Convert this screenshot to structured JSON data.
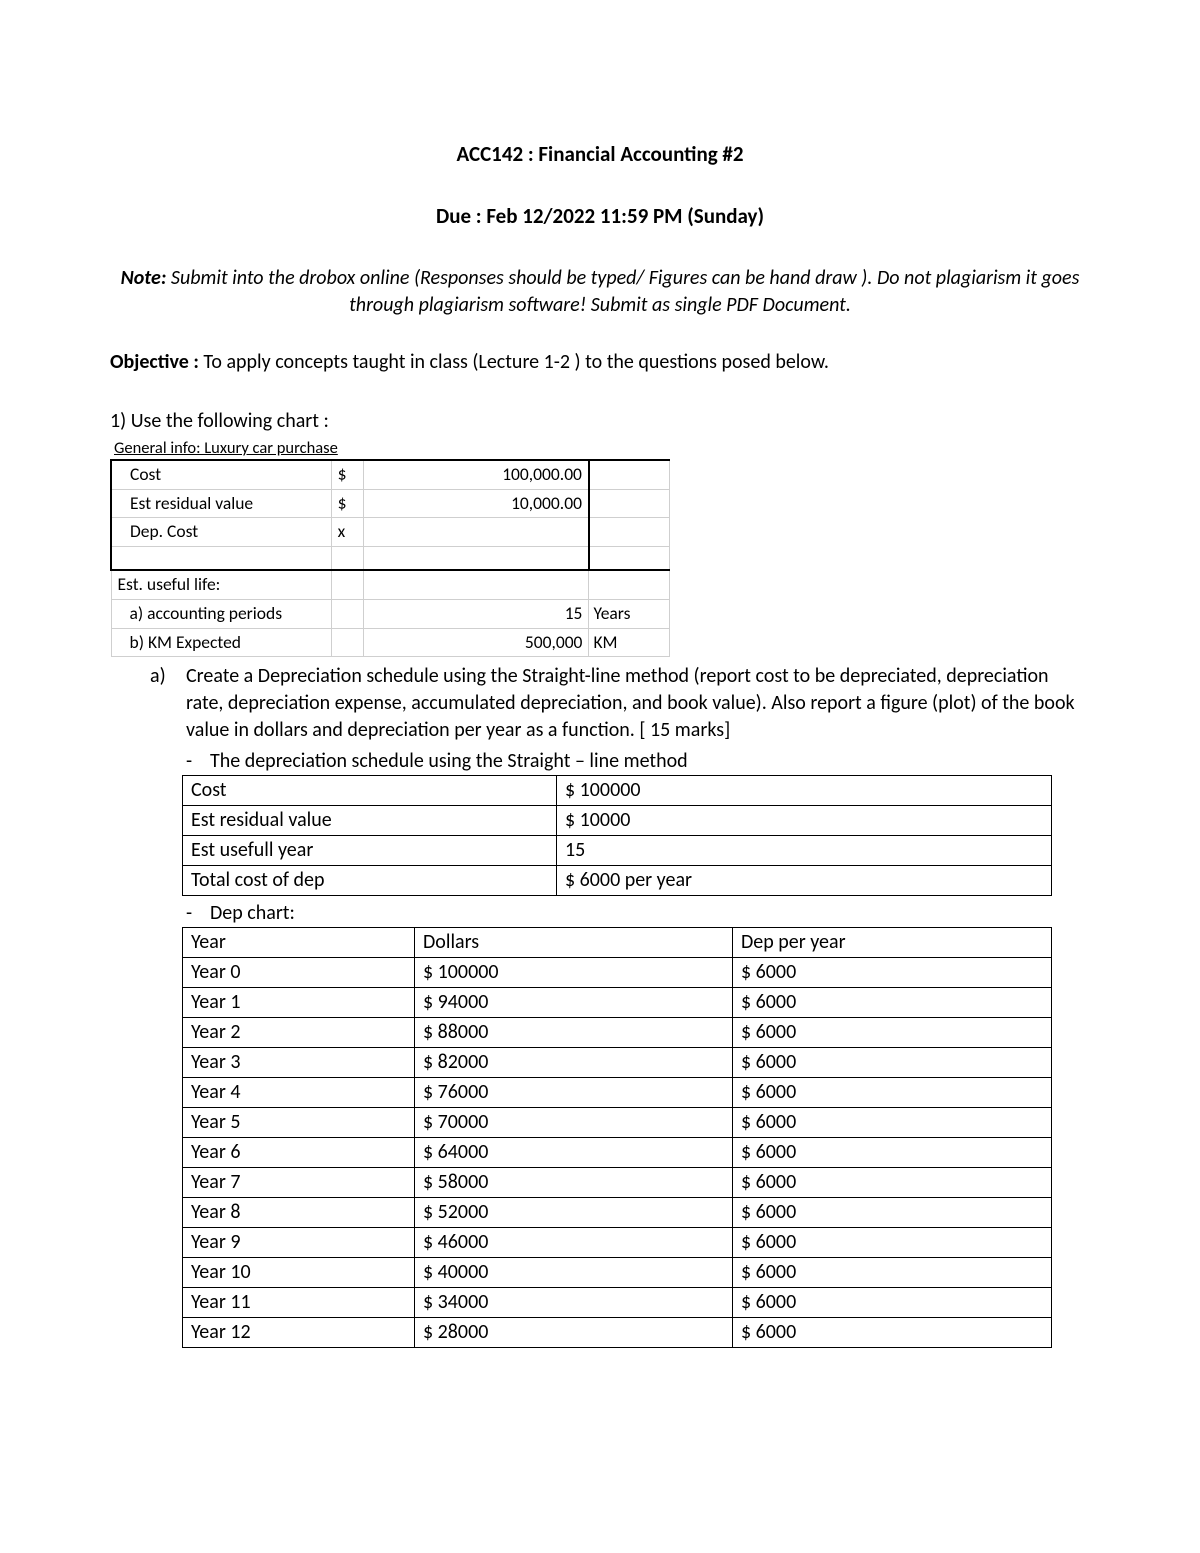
{
  "header": {
    "title": "ACC142 : Financial Accounting #2",
    "due": "Due : Feb 12/2022 11:59 PM (Sunday)"
  },
  "note": {
    "label": "Note:",
    "text": " Submit into the drobox online (Responses should be typed/ Figures can be hand draw ). Do not plagiarism it goes through plagiarism software! Submit as single PDF Document."
  },
  "objective": {
    "label": "Objective :",
    "text": " To apply concepts taught in class (Lecture 1-2 ) to the questions posed below."
  },
  "q1": {
    "prompt": "1) Use the following chart :",
    "general_info": {
      "caption": "General info:  Luxury car purchase",
      "rows": [
        {
          "label": "Cost",
          "sym": "$",
          "value": "100,000.00",
          "unit": ""
        },
        {
          "label": "Est residual value",
          "sym": "$",
          "value": "10,000.00",
          "unit": ""
        },
        {
          "label": "Dep. Cost",
          "sym": "x",
          "value": "",
          "unit": ""
        }
      ],
      "section_label": "Est. useful life:",
      "life_rows": [
        {
          "label": "a) accounting periods",
          "sym": "",
          "value": "15",
          "unit": "Years"
        },
        {
          "label": "b) KM Expected",
          "sym": "",
          "value": "500,000",
          "unit": "KM"
        }
      ]
    },
    "part_a": {
      "letter": "a)",
      "text": "Create a Depreciation schedule using the Straight-line method (report cost to be depreciated, depreciation rate, depreciation expense, accumulated depreciation, and book value). Also report a figure (plot) of the book value in dollars and depreciation per year as a function. [ 15 marks]",
      "sched_caption": "The depreciation schedule using the Straight – line method",
      "schedule": [
        {
          "k": "Cost",
          "v": "$ 100000"
        },
        {
          "k": "Est residual value",
          "v": "$ 10000"
        },
        {
          "k": "Est usefull year",
          "v": "15"
        },
        {
          "k": "Total cost of dep",
          "v": "$ 6000 per year"
        }
      ],
      "dep_caption": "Dep chart:",
      "dep_headers": {
        "c1": "Year",
        "c2": "Dollars",
        "c3": "Dep per year"
      },
      "dep_rows": [
        {
          "c1": "Year 0",
          "c2": "$ 100000",
          "c3": "$ 6000"
        },
        {
          "c1": "Year 1",
          "c2": "$ 94000",
          "c3": "$ 6000"
        },
        {
          "c1": "Year 2",
          "c2": "$ 88000",
          "c3": "$ 6000"
        },
        {
          "c1": "Year 3",
          "c2": "$ 82000",
          "c3": "$ 6000"
        },
        {
          "c1": "Year 4",
          "c2": "$ 76000",
          "c3": "$ 6000"
        },
        {
          "c1": "Year 5",
          "c2": "$ 70000",
          "c3": "$ 6000"
        },
        {
          "c1": "Year 6",
          "c2": "$ 64000",
          "c3": "$ 6000"
        },
        {
          "c1": "Year 7",
          "c2": "$ 58000",
          "c3": "$ 6000"
        },
        {
          "c1": "Year 8",
          "c2": "$ 52000",
          "c3": "$ 6000"
        },
        {
          "c1": "Year 9",
          "c2": "$ 46000",
          "c3": "$ 6000"
        },
        {
          "c1": "Year 10",
          "c2": "$ 40000",
          "c3": "$ 6000"
        },
        {
          "c1": "Year 11",
          "c2": "$ 34000",
          "c3": "$ 6000"
        },
        {
          "c1": "Year 12",
          "c2": "$ 28000",
          "c3": "$ 6000"
        }
      ]
    }
  },
  "style": {
    "page_bg": "#ffffff",
    "text_color": "#000000",
    "grid_color_light": "#cfcfcf",
    "grid_color_dark": "#000000",
    "body_fontsize_pt": 15,
    "title_fontsize_pt": 16
  }
}
